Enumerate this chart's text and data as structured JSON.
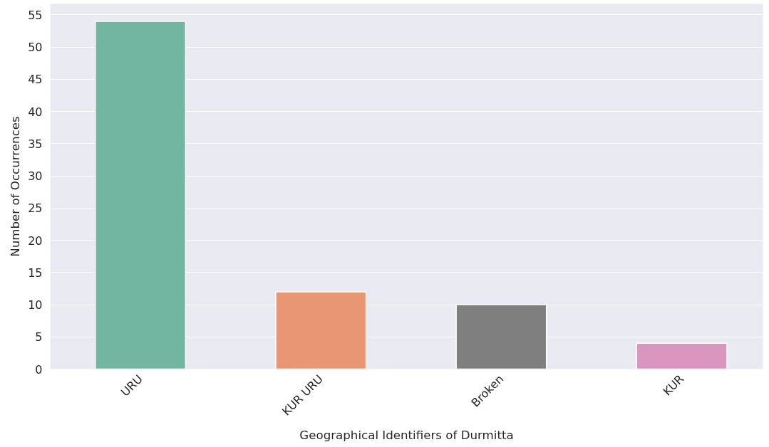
{
  "chart_data": {
    "type": "bar",
    "xlabel": "Geographical Identifiers of Durmitta",
    "ylabel": "Number of Occurrences",
    "categories": [
      "URU",
      "KUR URU",
      "Broken",
      "KUR"
    ],
    "values": [
      54,
      12,
      10,
      4
    ],
    "colors": [
      "#72b6a1",
      "#e99675",
      "#7f7f7f",
      "#db96c0"
    ],
    "ylim": [
      0,
      56.7
    ],
    "yticks": [
      0,
      5,
      10,
      15,
      20,
      25,
      30,
      35,
      40,
      45,
      50,
      55
    ],
    "grid": "y"
  }
}
